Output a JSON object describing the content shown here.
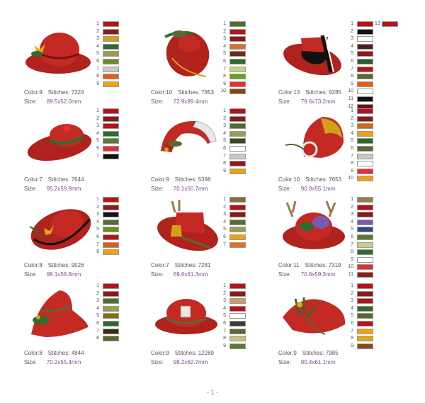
{
  "footer": {
    "page": "- 1 -"
  },
  "labels": {
    "color": "Color:",
    "stitches": "Stitches:",
    "size": "Size:"
  },
  "designs": [
    {
      "color": "9",
      "stitches": "7324",
      "size": "89.5x52.0mm",
      "swatches": [
        "#b5121b",
        "#8b1a1a",
        "#d4a017",
        "#2e6b2e",
        "#9c9a55",
        "#6b8e23",
        "#c8c8c8",
        "#e35d1a",
        "#e8a317"
      ]
    },
    {
      "color": "10",
      "stitches": "7853",
      "size": "72.9x89.4mm",
      "swatches": [
        "#556b2f",
        "#b5121b",
        "#8b1a1a",
        "#e07020",
        "#6b2b1a",
        "#2e6b2e",
        "#c8d080",
        "#6b9e23",
        "#e62e2e",
        "#7a4a1a"
      ]
    },
    {
      "color": "13",
      "stitches": "9285",
      "size": "79.6x73.2mm",
      "swatches": [
        "#b5121b",
        "#111111",
        "#ffffff",
        "#5a1a1a",
        "#8b1a1a",
        "#2e5b2e",
        "#b5121b",
        "#556b2f",
        "#e35d1a",
        "#ffffff",
        "#111111",
        "#6b0f0f"
      ],
      "extra": {
        "number": "13",
        "color": "#b5121b"
      }
    },
    {
      "color": "7",
      "stitches": "7644",
      "size": "95.2x59.8mm",
      "swatches": [
        "#b5121b",
        "#8b1a1a",
        "#b5121b",
        "#2e6b2e",
        "#5b7a2e",
        "#e62e2e",
        "#111111"
      ]
    },
    {
      "color": "9",
      "stitches": "5398",
      "size": "70.1x50.7mm",
      "swatches": [
        "#b5121b",
        "#8b1a1a",
        "#556b2f",
        "#9c9a55",
        "#3a4a1a",
        "#ffffff",
        "#c8c8c8",
        "#8b1a1a",
        "#e8a317"
      ]
    },
    {
      "color": "10",
      "stitches": "7653",
      "size": "90.0x55.1mm",
      "swatches": [
        "#b5121b",
        "#8b1a1a",
        "#c86b1a",
        "#e8a317",
        "#2e6b2e",
        "#556b2f",
        "#c8c8c8",
        "#ffffff",
        "#e62e2e",
        "#e8a317"
      ]
    },
    {
      "color": "8",
      "stitches": "9526",
      "size": "98.1x56.8mm",
      "swatches": [
        "#b5121b",
        "#8b1a1a",
        "#111111",
        "#556b2f",
        "#6b8e23",
        "#b5121b",
        "#e35d1a",
        "#e8a317"
      ]
    },
    {
      "color": "7",
      "stitches": "7281",
      "size": "69.6x61.3mm",
      "swatches": [
        "#8b6b3a",
        "#b5121b",
        "#8b1a1a",
        "#556b2f",
        "#9c9a55",
        "#e8a317",
        "#e07020"
      ]
    },
    {
      "color": "11",
      "stitches": "7319",
      "size": "70.6x59.3mm",
      "swatches": [
        "#9b7a4a",
        "#b5121b",
        "#8b1a1a",
        "#7a5ab0",
        "#2e4b7a",
        "#5b7a2e",
        "#c8d080",
        "#2e6b2e",
        "#ffffff",
        "#e62e2e",
        "#8b1a1a"
      ]
    },
    {
      "color": "8",
      "stitches": "4844",
      "size": "70.2x55.4mm",
      "swatches": [
        "#b5121b",
        "#8b1a1a",
        "#556b2f",
        "#9c9a55",
        "#8b6b1a",
        "#2e6b2e",
        "#3a2a0a",
        "#556b2f"
      ]
    },
    {
      "color": "9",
      "stitches": "12269",
      "size": "98.2x62.7mm",
      "swatches": [
        "#b5121b",
        "#8b1a1a",
        "#c8a060",
        "#b5121b",
        "#ffffff",
        "#3a3a3a",
        "#556b2f",
        "#c8c080",
        "#5b7a2e"
      ]
    },
    {
      "color": "9",
      "stitches": "7985",
      "size": "90.4x61.1mm",
      "swatches": [
        "#b5121b",
        "#8b1a1a",
        "#b5121b",
        "#2e6b2e",
        "#556b2f",
        "#b5121b",
        "#e8a317",
        "#e8a317",
        "#8b4a1a"
      ]
    }
  ]
}
